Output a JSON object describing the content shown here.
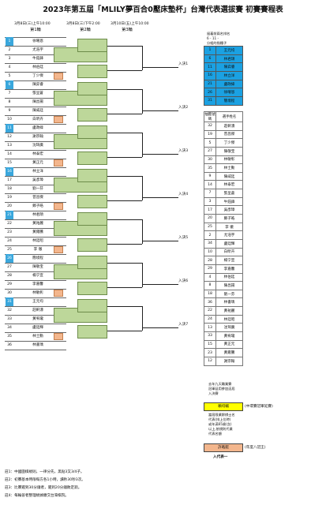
{
  "title": "2023年第五屆「MLILY夢百合0壓床墊杯」台灣代表選拔賽 初賽賽程表",
  "dates": [
    "3月8日(三)上午10:00",
    "3月8日(三)下午2:00",
    "3月10日(五)上午10:00"
  ],
  "rounds": [
    "第1輪",
    "第2輪",
    "第3輪"
  ],
  "players": [
    {
      "n": "1",
      "name": "徐曜恩",
      "seed": true
    },
    {
      "n": "2",
      "name": "尤浩宇",
      "seed": false
    },
    {
      "n": "3",
      "name": "牛鈺鋒",
      "seed": false
    },
    {
      "n": "4",
      "name": "林伯廷",
      "seed": false
    },
    {
      "n": "5",
      "name": "丁少傑",
      "seed": false
    },
    {
      "n": "6",
      "name": "陳弈睿",
      "seed": true
    },
    {
      "n": "7",
      "name": "張呈蒼",
      "seed": false
    },
    {
      "n": "8",
      "name": "陳昌揚",
      "seed": false
    },
    {
      "n": "9",
      "name": "陳威廷",
      "seed": false
    },
    {
      "n": "10",
      "name": "白昕卉",
      "seed": false
    },
    {
      "n": "11",
      "name": "盧政緯",
      "seed": true
    },
    {
      "n": "12",
      "name": "謝宗翰",
      "seed": false
    },
    {
      "n": "13",
      "name": "沈琦廣",
      "seed": false
    },
    {
      "n": "14",
      "name": "林泰宏",
      "seed": false
    },
    {
      "n": "15",
      "name": "黃正元",
      "seed": false
    },
    {
      "n": "16",
      "name": "林立洋",
      "seed": true
    },
    {
      "n": "17",
      "name": "吳彥璋",
      "seed": false
    },
    {
      "n": "18",
      "name": "劉一芬",
      "seed": false
    },
    {
      "n": "19",
      "name": "曾昌傑",
      "seed": false
    },
    {
      "n": "20",
      "name": "鄭子皓",
      "seed": false
    },
    {
      "n": "21",
      "name": "林君頡",
      "seed": true
    },
    {
      "n": "22",
      "name": "黃祐麗",
      "seed": false
    },
    {
      "n": "23",
      "name": "黃雍騰",
      "seed": false
    },
    {
      "n": "24",
      "name": "林廷昭",
      "seed": false
    },
    {
      "n": "25",
      "name": "李 徹",
      "seed": false
    },
    {
      "n": "26",
      "name": "簡境程",
      "seed": true
    },
    {
      "n": "27",
      "name": "陳敬宝",
      "seed": false
    },
    {
      "n": "28",
      "name": "楊宁宣",
      "seed": false
    },
    {
      "n": "29",
      "name": "李嘉馨",
      "seed": false
    },
    {
      "n": "30",
      "name": "林敏彰",
      "seed": false
    },
    {
      "n": "31",
      "name": "王元均",
      "seed": true
    },
    {
      "n": "32",
      "name": "莊軒濤",
      "seed": false
    },
    {
      "n": "33",
      "name": "黃宥瓏",
      "seed": false
    },
    {
      "n": "34",
      "name": "盧廷輝",
      "seed": false
    },
    {
      "n": "35",
      "name": "林士勳",
      "seed": false
    },
    {
      "n": "36",
      "name": "林書瑀",
      "seed": false
    }
  ],
  "advance_labels": [
    "入決1",
    "入決2",
    "入決3",
    "入決4",
    "入決5",
    "入決6",
    "入決7"
  ],
  "seed_note": [
    "留着前兩名排名",
    "6 - 11 -",
    "分組的指種子",
    "16 - 21 -",
    "26 - 31"
  ],
  "seed_list": [
    {
      "n": "1",
      "name": "王元均"
    },
    {
      "n": "6",
      "name": "林君頡"
    },
    {
      "n": "11",
      "name": "陳弈睿"
    },
    {
      "n": "16",
      "name": "林立洋"
    },
    {
      "n": "21",
      "name": "盧政緯"
    },
    {
      "n": "26",
      "name": "徐曜恩"
    },
    {
      "n": "31",
      "name": "簡境程"
    }
  ],
  "draw_header": {
    "n": "抽籤號碼",
    "name": "選手姓名"
  },
  "draw_list": [
    {
      "n": "32",
      "name": "莊軒濤"
    },
    {
      "n": "19",
      "name": "曾昌傑"
    },
    {
      "n": "5",
      "name": "丁少傑"
    },
    {
      "n": "27",
      "name": "陳敬宝"
    },
    {
      "n": "30",
      "name": "林敏彰"
    },
    {
      "n": "35",
      "name": "林士勳"
    },
    {
      "n": "9",
      "name": "陳威廷"
    },
    {
      "n": "14",
      "name": "林泰宏"
    },
    {
      "n": "7",
      "name": "張呈蒼"
    },
    {
      "n": "3",
      "name": "牛鈺鋒"
    },
    {
      "n": "17",
      "name": "吳彥璋"
    },
    {
      "n": "20",
      "name": "鄭子皓"
    },
    {
      "n": "25",
      "name": "李 徹"
    },
    {
      "n": "2",
      "name": "尤浩宇"
    },
    {
      "n": "34",
      "name": "盧廷輝"
    },
    {
      "n": "10",
      "name": "白昕卉"
    },
    {
      "n": "28",
      "name": "楊宁宣"
    },
    {
      "n": "29",
      "name": "李嘉馨"
    },
    {
      "n": "4",
      "name": "林伯廷"
    },
    {
      "n": "8",
      "name": "陳昌揚"
    },
    {
      "n": "18",
      "name": "劉一芬"
    },
    {
      "n": "36",
      "name": "林書瑀"
    },
    {
      "n": "22",
      "name": "黃祐麗"
    },
    {
      "n": "24",
      "name": "林廷昭"
    },
    {
      "n": "13",
      "name": "沈琦廣"
    },
    {
      "n": "33",
      "name": "黃宥瓏"
    },
    {
      "n": "15",
      "name": "黃正元"
    },
    {
      "n": "23",
      "name": "黃雍騰"
    },
    {
      "n": "12",
      "name": "謝宗翰"
    }
  ],
  "note1": [
    "去年九天職業賽",
    "冠軍延用參加這屆",
    "入決賽"
  ],
  "legend_yellow": "賴均輔",
  "legend_yellow_desc": "(中環賽冠軍延賽)",
  "note2": [
    "當屆限業餘棋士名",
    "代表(排上位時)",
    "或年滿65歲(含)",
    "以上,依規則代業",
    "代表名額"
  ],
  "legend_orange": "許皓鋐",
  "legend_orange_desc": "(年度八冠王)",
  "legend_bottom": "入代表一",
  "footnotes": [
    "註1：中國圍棋規則，一律分先，黑貼3又3/4子。",
    "註2：初賽基本時限每方各1小時，讀秒30秒3次。",
    "註3：比賽遲到30分鐘者，遲到20分鐘敗定罰。",
    "註4：每輪晉者整理規據繳交台灣棋院。"
  ],
  "colors": {
    "seed_blue": "#1ba1e2",
    "box_green": "#bdd79a",
    "box_orange": "#f3b68d",
    "legend_yellow": "#ffff00"
  }
}
